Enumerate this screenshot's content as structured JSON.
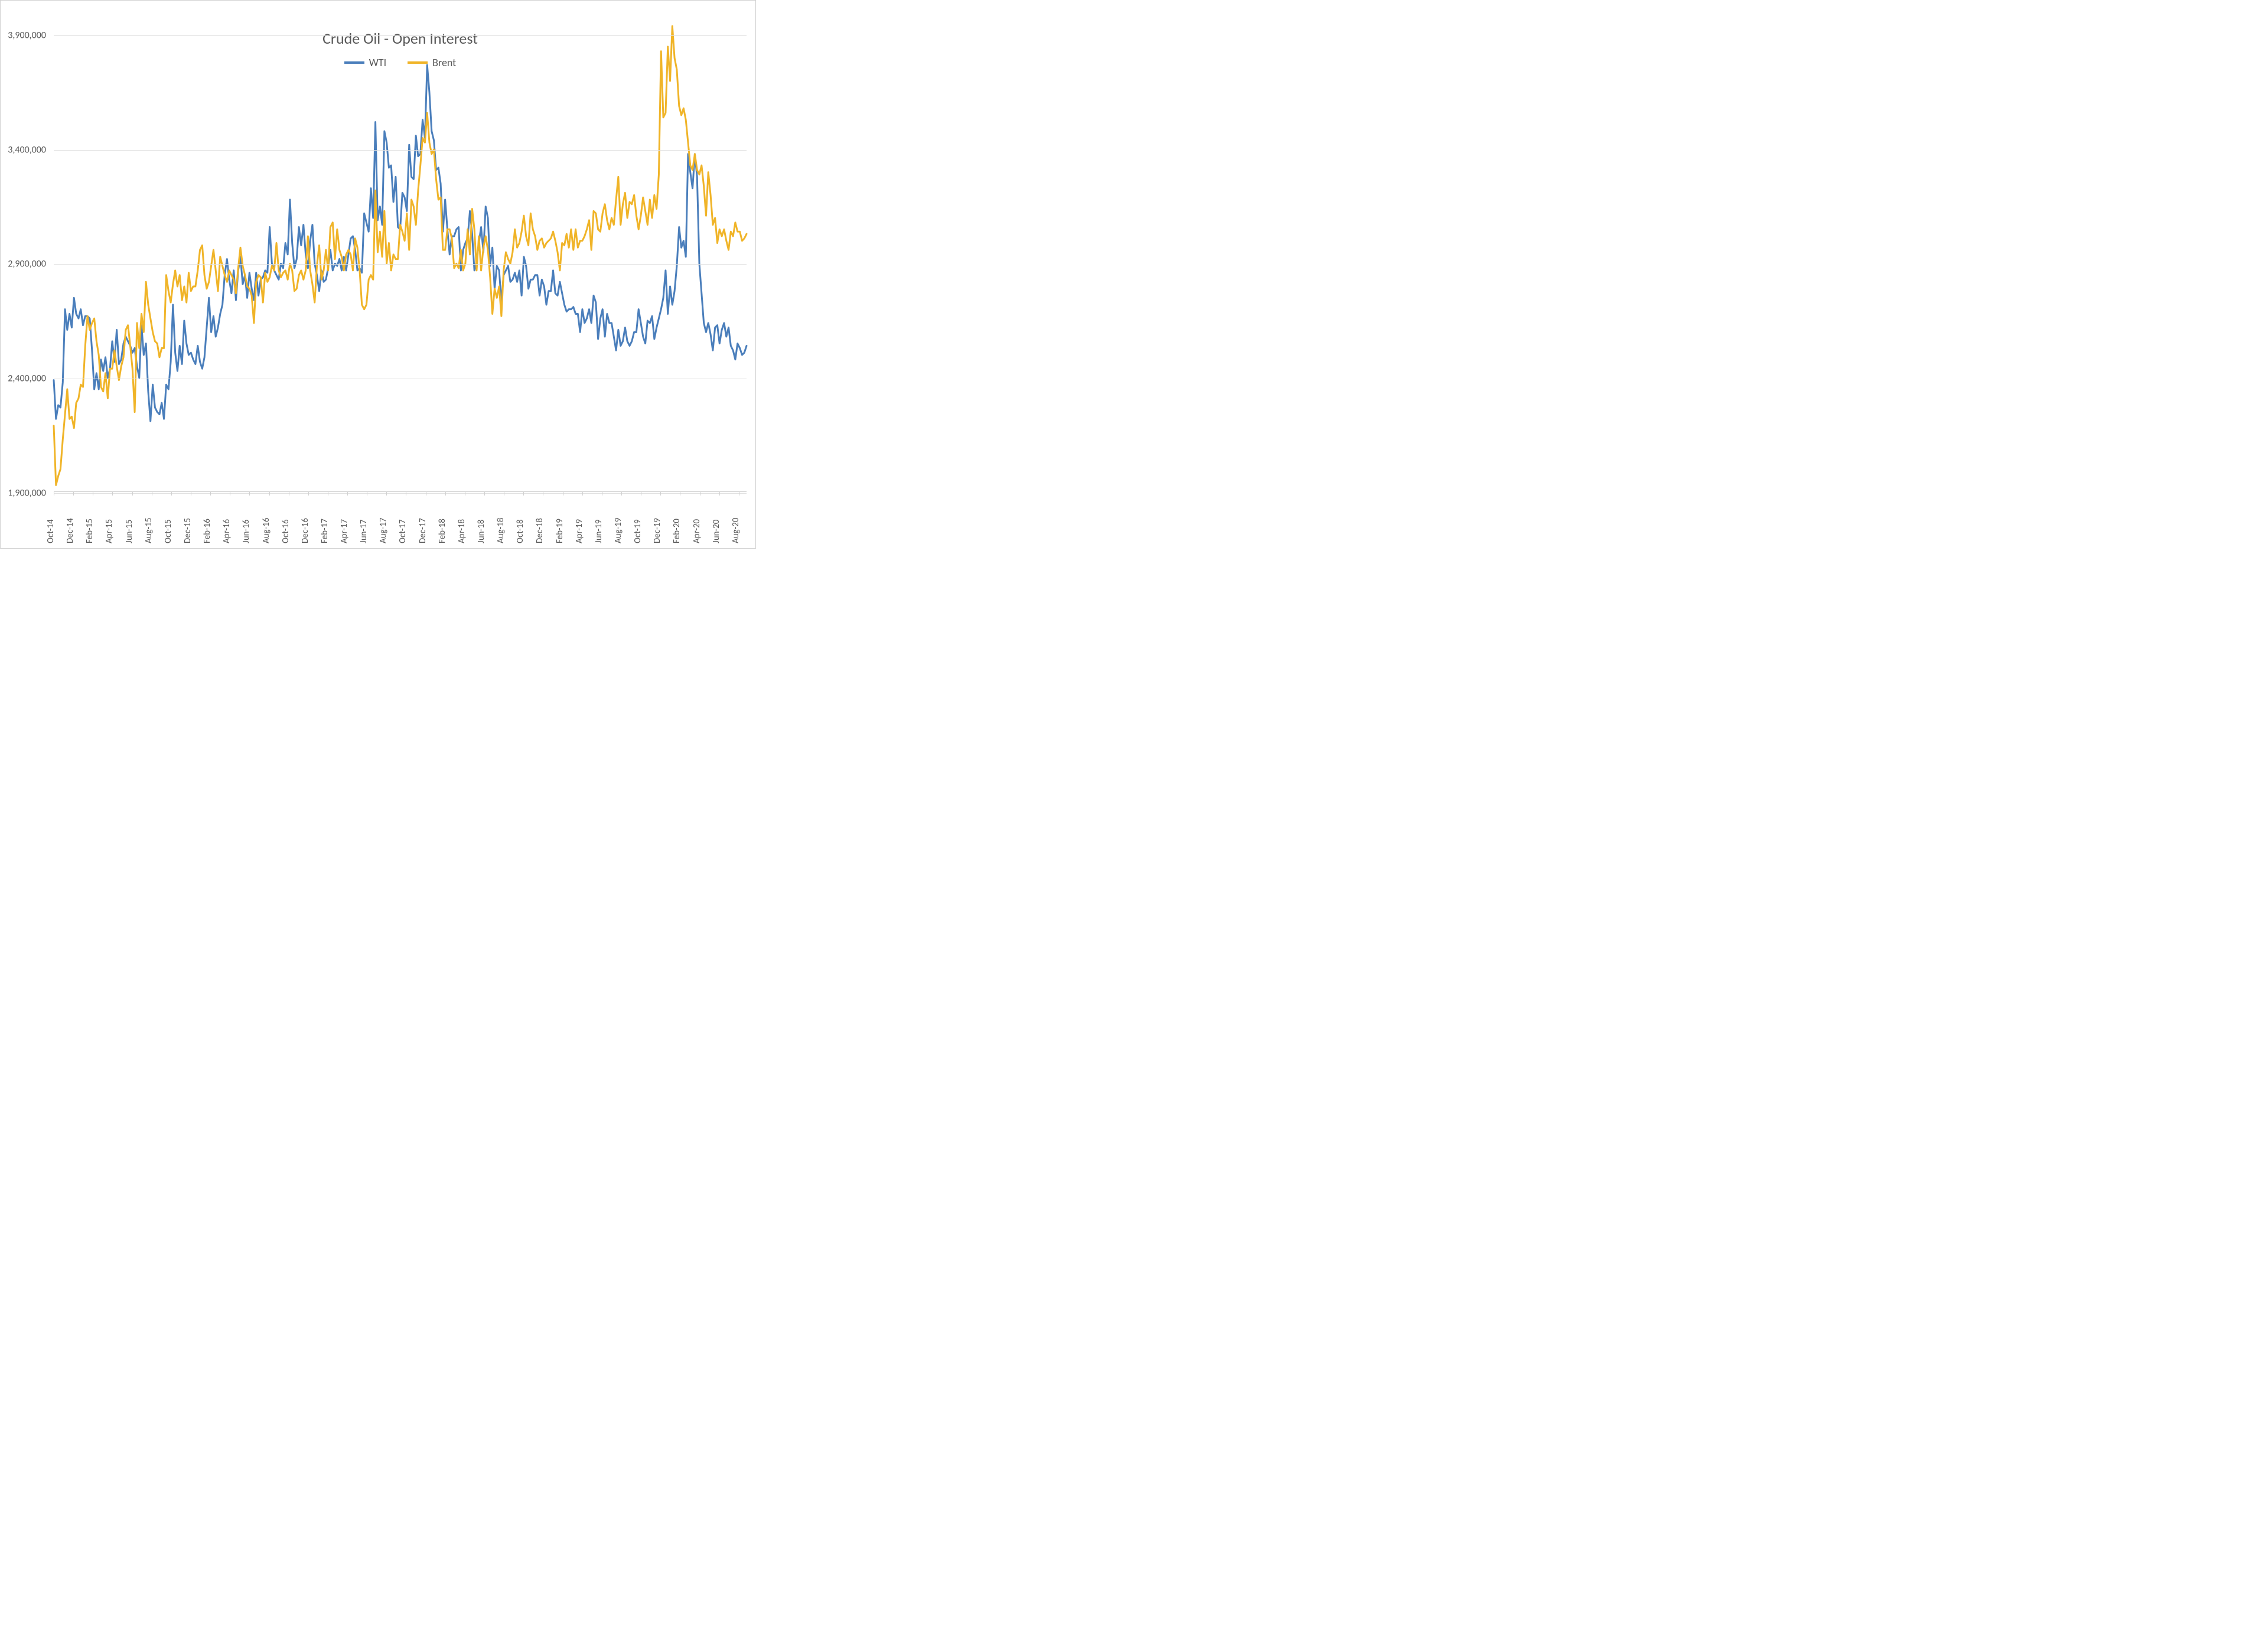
{
  "chart": {
    "type": "line",
    "title": "Crude Oil - Open Interest",
    "title_fontsize": 26,
    "title_color": "#595959",
    "background_color": "#ffffff",
    "border_color": "#d0d0d0",
    "grid_color": "#e0e0e0",
    "axis_text_color": "#595959",
    "axis_fontsize": 16,
    "x_axis_fontsize": 15,
    "legend_fontsize": 18,
    "line_width": 3,
    "ylim": [
      1900000,
      4000000
    ],
    "ytick_step": 500000,
    "yticks": [
      1900000,
      2400000,
      2900000,
      3400000,
      3900000
    ],
    "ytick_labels": [
      "1,900,000",
      "2,400,000",
      "2,900,000",
      "3,400,000",
      "3,900,000"
    ],
    "x_categories": [
      "Oct-14",
      "Dec-14",
      "Feb-15",
      "Apr-15",
      "Jun-15",
      "Aug-15",
      "Oct-15",
      "Dec-15",
      "Feb-16",
      "Apr-16",
      "Jun-16",
      "Aug-16",
      "Oct-16",
      "Dec-16",
      "Feb-17",
      "Apr-17",
      "Jun-17",
      "Aug-17",
      "Oct-17",
      "Dec-17",
      "Feb-18",
      "Apr-18",
      "Jun-18",
      "Aug-18",
      "Oct-18",
      "Dec-18",
      "Feb-19",
      "Apr-19",
      "Jun-19",
      "Aug-19",
      "Oct-19",
      "Dec-19",
      "Feb-20",
      "Apr-20",
      "Jun-20",
      "Aug-20"
    ],
    "x_weeks_per_tick": 8.686,
    "n_points": 309,
    "series": [
      {
        "name": "WTI",
        "color": "#4a7ebb",
        "label": "WTI",
        "values": [
          2390000,
          2220000,
          2280000,
          2270000,
          2380000,
          2700000,
          2610000,
          2680000,
          2620000,
          2750000,
          2680000,
          2660000,
          2700000,
          2630000,
          2670000,
          2670000,
          2660000,
          2520000,
          2350000,
          2420000,
          2350000,
          2480000,
          2430000,
          2490000,
          2400000,
          2440000,
          2560000,
          2470000,
          2610000,
          2460000,
          2480000,
          2550000,
          2580000,
          2560000,
          2540000,
          2510000,
          2530000,
          2450000,
          2400000,
          2630000,
          2500000,
          2550000,
          2340000,
          2210000,
          2370000,
          2270000,
          2250000,
          2240000,
          2290000,
          2220000,
          2370000,
          2350000,
          2470000,
          2720000,
          2510000,
          2430000,
          2540000,
          2460000,
          2650000,
          2550000,
          2500000,
          2510000,
          2480000,
          2460000,
          2540000,
          2470000,
          2440000,
          2490000,
          2620000,
          2750000,
          2600000,
          2670000,
          2580000,
          2620000,
          2680000,
          2720000,
          2850000,
          2920000,
          2830000,
          2770000,
          2870000,
          2740000,
          2870000,
          2930000,
          2810000,
          2850000,
          2750000,
          2860000,
          2790000,
          2740000,
          2860000,
          2760000,
          2830000,
          2840000,
          2870000,
          2860000,
          3060000,
          2900000,
          2870000,
          2850000,
          2830000,
          2900000,
          2880000,
          2990000,
          2940000,
          3180000,
          2990000,
          2880000,
          2920000,
          3060000,
          2980000,
          3070000,
          2940000,
          2880000,
          3000000,
          3070000,
          2900000,
          2850000,
          2780000,
          2870000,
          2820000,
          2830000,
          2880000,
          2960000,
          2870000,
          2900000,
          2890000,
          2920000,
          2870000,
          2930000,
          2870000,
          2940000,
          3010000,
          3020000,
          2960000,
          2870000,
          2880000,
          2860000,
          3120000,
          3080000,
          3040000,
          3230000,
          3100000,
          3520000,
          3090000,
          3150000,
          3070000,
          3480000,
          3430000,
          3320000,
          3330000,
          3170000,
          3280000,
          3060000,
          3050000,
          3210000,
          3190000,
          3130000,
          3420000,
          3280000,
          3270000,
          3460000,
          3370000,
          3380000,
          3530000,
          3450000,
          3770000,
          3650000,
          3480000,
          3440000,
          3310000,
          3320000,
          3250000,
          3040000,
          3180000,
          3050000,
          2940000,
          3020000,
          3020000,
          3050000,
          3060000,
          2870000,
          2960000,
          2990000,
          3010000,
          3130000,
          3030000,
          2870000,
          2910000,
          2990000,
          3060000,
          2950000,
          3150000,
          3100000,
          2890000,
          2970000,
          2790000,
          2890000,
          2870000,
          2730000,
          2850000,
          2870000,
          2890000,
          2820000,
          2830000,
          2860000,
          2820000,
          2870000,
          2760000,
          2930000,
          2890000,
          2790000,
          2830000,
          2830000,
          2850000,
          2850000,
          2760000,
          2830000,
          2800000,
          2720000,
          2780000,
          2780000,
          2870000,
          2770000,
          2760000,
          2820000,
          2770000,
          2720000,
          2690000,
          2700000,
          2700000,
          2710000,
          2680000,
          2680000,
          2600000,
          2700000,
          2640000,
          2660000,
          2700000,
          2640000,
          2760000,
          2730000,
          2570000,
          2660000,
          2700000,
          2580000,
          2680000,
          2640000,
          2640000,
          2580000,
          2520000,
          2610000,
          2540000,
          2560000,
          2620000,
          2560000,
          2540000,
          2560000,
          2600000,
          2600000,
          2700000,
          2640000,
          2580000,
          2550000,
          2650000,
          2640000,
          2670000,
          2570000,
          2620000,
          2660000,
          2700000,
          2750000,
          2870000,
          2680000,
          2800000,
          2720000,
          2780000,
          2890000,
          3060000,
          2970000,
          3000000,
          2930000,
          3380000,
          3300000,
          3230000,
          3380000,
          3280000,
          2900000,
          2770000,
          2640000,
          2600000,
          2640000,
          2590000,
          2520000,
          2620000,
          2630000,
          2550000,
          2610000,
          2640000,
          2580000,
          2620000,
          2540000,
          2520000,
          2480000,
          2550000,
          2530000,
          2500000,
          2510000,
          2540000
        ]
      },
      {
        "name": "Brent",
        "color": "#f0b428",
        "label": "Brent",
        "values": [
          2190000,
          1930000,
          1970000,
          2000000,
          2130000,
          2240000,
          2350000,
          2220000,
          2230000,
          2180000,
          2290000,
          2310000,
          2370000,
          2360000,
          2540000,
          2670000,
          2610000,
          2640000,
          2660000,
          2560000,
          2500000,
          2360000,
          2340000,
          2420000,
          2310000,
          2440000,
          2440000,
          2520000,
          2450000,
          2390000,
          2450000,
          2490000,
          2610000,
          2630000,
          2540000,
          2440000,
          2250000,
          2640000,
          2530000,
          2680000,
          2600000,
          2820000,
          2720000,
          2660000,
          2600000,
          2560000,
          2550000,
          2490000,
          2530000,
          2530000,
          2850000,
          2780000,
          2730000,
          2810000,
          2870000,
          2800000,
          2850000,
          2740000,
          2800000,
          2730000,
          2860000,
          2780000,
          2800000,
          2800000,
          2870000,
          2960000,
          2980000,
          2850000,
          2790000,
          2820000,
          2890000,
          2960000,
          2870000,
          2780000,
          2930000,
          2890000,
          2850000,
          2820000,
          2870000,
          2850000,
          2830000,
          2770000,
          2880000,
          2970000,
          2890000,
          2850000,
          2800000,
          2790000,
          2760000,
          2640000,
          2820000,
          2850000,
          2840000,
          2730000,
          2860000,
          2820000,
          2840000,
          2890000,
          2870000,
          2990000,
          2870000,
          2840000,
          2860000,
          2870000,
          2830000,
          2900000,
          2870000,
          2780000,
          2790000,
          2850000,
          2870000,
          2830000,
          2870000,
          3020000,
          2870000,
          2810000,
          2730000,
          2890000,
          2980000,
          2830000,
          2870000,
          2960000,
          2870000,
          3060000,
          3080000,
          2920000,
          3050000,
          2960000,
          2930000,
          2870000,
          2940000,
          2960000,
          2940000,
          2870000,
          3010000,
          2970000,
          2870000,
          2720000,
          2700000,
          2720000,
          2830000,
          2850000,
          2830000,
          3220000,
          2950000,
          3040000,
          2930000,
          3130000,
          2900000,
          2990000,
          2870000,
          2940000,
          2920000,
          2920000,
          3070000,
          3040000,
          3000000,
          3120000,
          2960000,
          3180000,
          3150000,
          3070000,
          3220000,
          3330000,
          3450000,
          3430000,
          3560000,
          3430000,
          3380000,
          3400000,
          3270000,
          3180000,
          3190000,
          2960000,
          2960000,
          3050000,
          3050000,
          3010000,
          2880000,
          2900000,
          2880000,
          2960000,
          2870000,
          2900000,
          3050000,
          2940000,
          3140000,
          3050000,
          2870000,
          3020000,
          2870000,
          2970000,
          3020000,
          2960000,
          2840000,
          2680000,
          2790000,
          2750000,
          2800000,
          2670000,
          2870000,
          2950000,
          2920000,
          2900000,
          2950000,
          3050000,
          2970000,
          2990000,
          3040000,
          3110000,
          3020000,
          2980000,
          3120000,
          3050000,
          3020000,
          2960000,
          3000000,
          3010000,
          2970000,
          2990000,
          3000000,
          3010000,
          3040000,
          3000000,
          2950000,
          2870000,
          2990000,
          2980000,
          3030000,
          2970000,
          3050000,
          2960000,
          3050000,
          2970000,
          3000000,
          3000000,
          3020000,
          3050000,
          3090000,
          2960000,
          3130000,
          3120000,
          3050000,
          3040000,
          3120000,
          3160000,
          3090000,
          3050000,
          3100000,
          3070000,
          3180000,
          3280000,
          3070000,
          3160000,
          3210000,
          3100000,
          3170000,
          3160000,
          3200000,
          3110000,
          3050000,
          3110000,
          3190000,
          3130000,
          3070000,
          3180000,
          3100000,
          3200000,
          3140000,
          3290000,
          3830000,
          3540000,
          3560000,
          3850000,
          3700000,
          3940000,
          3800000,
          3750000,
          3590000,
          3550000,
          3580000,
          3530000,
          3430000,
          3330000,
          3310000,
          3380000,
          3310000,
          3290000,
          3330000,
          3240000,
          3110000,
          3300000,
          3200000,
          3070000,
          3100000,
          2990000,
          3050000,
          3020000,
          3050000,
          3000000,
          2960000,
          3040000,
          3020000,
          3080000,
          3040000,
          3040000,
          3000000,
          3010000,
          3030000
        ]
      }
    ]
  }
}
